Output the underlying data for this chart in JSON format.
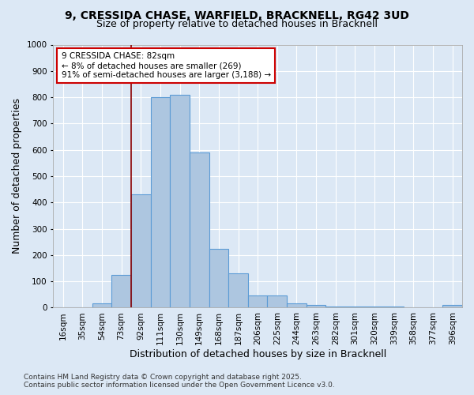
{
  "title_line1": "9, CRESSIDA CHASE, WARFIELD, BRACKNELL, RG42 3UD",
  "title_line2": "Size of property relative to detached houses in Bracknell",
  "xlabel": "Distribution of detached houses by size in Bracknell",
  "ylabel": "Number of detached properties",
  "categories": [
    "16sqm",
    "35sqm",
    "54sqm",
    "73sqm",
    "92sqm",
    "111sqm",
    "130sqm",
    "149sqm",
    "168sqm",
    "187sqm",
    "206sqm",
    "225sqm",
    "244sqm",
    "263sqm",
    "282sqm",
    "301sqm",
    "320sqm",
    "339sqm",
    "358sqm",
    "377sqm",
    "396sqm"
  ],
  "values": [
    0,
    0,
    15,
    125,
    430,
    800,
    810,
    590,
    225,
    130,
    45,
    45,
    15,
    10,
    5,
    5,
    5,
    5,
    2,
    2,
    10
  ],
  "bar_color": "#adc6e0",
  "bar_edge_color": "#5b9bd5",
  "background_color": "#dce8f5",
  "grid_color": "#ffffff",
  "red_line_x": 3.5,
  "annotation_line1": "9 CRESSIDA CHASE: 82sqm",
  "annotation_line2": "← 8% of detached houses are smaller (269)",
  "annotation_line3": "91% of semi-detached houses are larger (3,188) →",
  "annotation_box_color": "#ffffff",
  "annotation_box_edge": "#cc0000",
  "red_line_color": "#8b0000",
  "ylim": [
    0,
    1000
  ],
  "yticks": [
    0,
    100,
    200,
    300,
    400,
    500,
    600,
    700,
    800,
    900,
    1000
  ],
  "footnote": "Contains HM Land Registry data © Crown copyright and database right 2025.\nContains public sector information licensed under the Open Government Licence v3.0.",
  "title_fontsize": 10,
  "title2_fontsize": 9,
  "label_fontsize": 9,
  "tick_fontsize": 7.5,
  "annotation_fontsize": 7.5,
  "footnote_fontsize": 6.5
}
